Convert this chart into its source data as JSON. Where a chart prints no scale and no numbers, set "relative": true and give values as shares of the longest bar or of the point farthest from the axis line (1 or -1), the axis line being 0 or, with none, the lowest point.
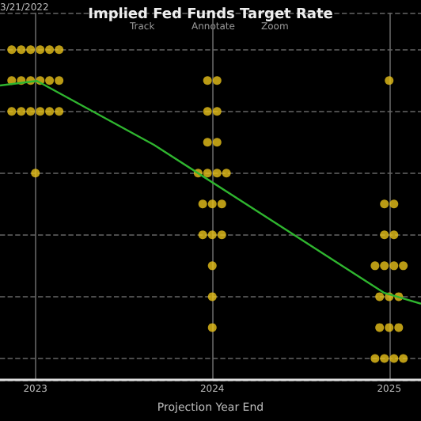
{
  "chart_data": {
    "type": "scatter",
    "title": "Implied Fed Funds Target Rate",
    "xlabel": "Projection Year End",
    "relative": true,
    "xlim": [
      2022.8,
      2025.18
    ],
    "xticks": [
      2023,
      2024,
      2025
    ],
    "grid": true,
    "marker": "circle",
    "annotations": [
      "3/21/2022",
      "Track",
      "Annotate",
      "Zoom"
    ],
    "series": [
      {
        "type": "scatter",
        "color": "#e8c21a",
        "x": [
          2022.866,
          2022.92,
          2022.973,
          2023.027,
          2023.08,
          2023.134,
          2022.866,
          2022.92,
          2022.973,
          2023.027,
          2023.08,
          2023.134,
          2022.866,
          2022.92,
          2022.973,
          2023.027,
          2023.08,
          2023.134,
          2023.0,
          2023.973,
          2024.027,
          2023.973,
          2024.027,
          2023.973,
          2024.027,
          2023.92,
          2023.973,
          2024.027,
          2024.08,
          2023.946,
          2024.0,
          2024.054,
          2023.946,
          2024.0,
          2024.054,
          2024.0,
          2024.0,
          2024.0,
          2025.0,
          2024.973,
          2025.027,
          2024.973,
          2025.027,
          2024.92,
          2024.973,
          2025.027,
          2025.08,
          2024.946,
          2025.0,
          2025.054,
          2024.946,
          2025.0,
          2025.054,
          2024.92,
          2024.973,
          2025.027,
          2025.08
        ],
        "values": [
          1,
          1,
          1,
          1,
          1,
          1,
          0.9,
          0.9,
          0.9,
          0.9,
          0.9,
          0.9,
          0.8,
          0.8,
          0.8,
          0.8,
          0.8,
          0.8,
          0.6,
          0.9,
          0.9,
          0.8,
          0.8,
          0.7,
          0.7,
          0.6,
          0.6,
          0.6,
          0.6,
          0.5,
          0.5,
          0.5,
          0.4,
          0.4,
          0.4,
          0.3,
          0.2,
          0.1,
          0.9,
          0.5,
          0.5,
          0.4,
          0.4,
          0.3,
          0.3,
          0.3,
          0.3,
          0.2,
          0.2,
          0.2,
          0.1,
          0.1,
          0.1,
          0,
          0,
          0,
          0
        ]
      },
      {
        "type": "line",
        "color": "#2fb52f",
        "marker": "none",
        "x": [
          2022.8,
          2023.009,
          2023.67,
          2024.973,
          2025.18
        ],
        "values": [
          0.884,
          0.899,
          0.692,
          0.212,
          0.177
        ]
      }
    ]
  }
}
